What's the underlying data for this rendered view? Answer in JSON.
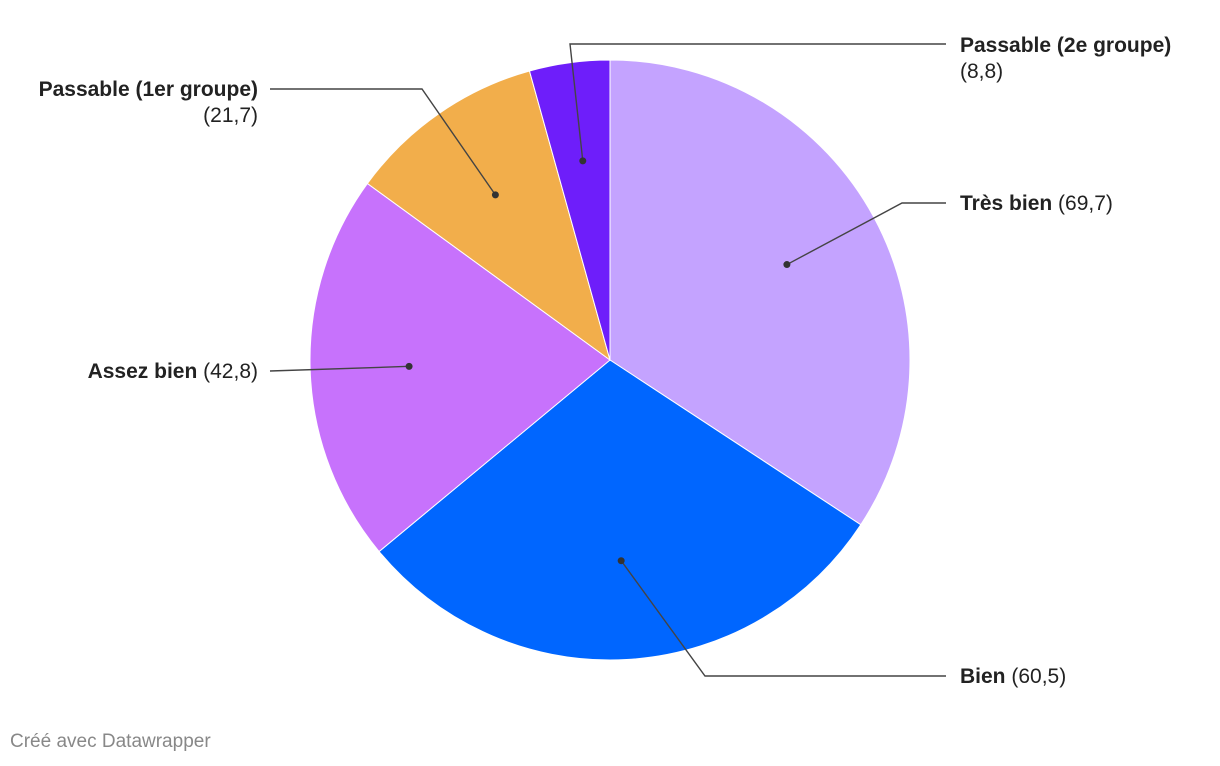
{
  "chart_data": {
    "type": "pie",
    "categories": [
      "Très bien",
      "Bien",
      "Assez bien",
      "Passable (1er groupe)",
      "Passable (2e groupe)"
    ],
    "values": [
      69.7,
      60.5,
      42.8,
      21.7,
      8.8
    ],
    "value_labels": [
      "69,7",
      "60,5",
      "42,8",
      "21,7",
      "8,8"
    ],
    "colors": [
      "#c4a3ff",
      "#0066ff",
      "#c772fc",
      "#f2ae4b",
      "#6e1efa"
    ],
    "start_angle_deg": 0,
    "direction": "clockwise"
  },
  "credit": "Créé avec Datawrapper"
}
